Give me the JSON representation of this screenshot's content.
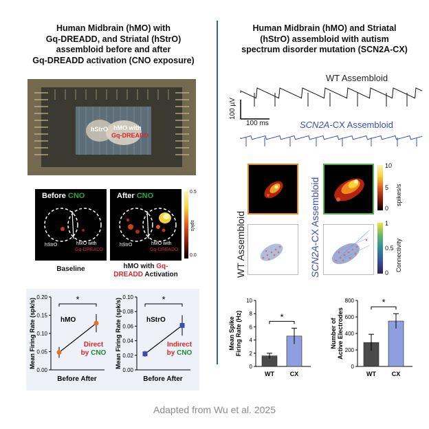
{
  "left": {
    "title_lines": [
      "Human Midbrain (hMO) with",
      "Gq-DREADD, and Striatal (hStrO)",
      "assembloid before and after",
      "Gq-DREADD activation (CNO exposure)"
    ],
    "photo": {
      "label_hstro": "hStrO",
      "label_hmo": "hMO with",
      "label_gq": "Gq-DREADD"
    },
    "heatmaps": {
      "before_label": "Before",
      "after_label": "After",
      "cno_label": "CNO",
      "cno_color": "#1fa84b",
      "hstro": "hStrO",
      "hmo_with": "hMO with",
      "gq": "Gq-DREADD",
      "colorbar_max": "0.5",
      "colorbar_min": "0.0",
      "colorbar_unit": "spk/s",
      "caption_baseline": "Baseline",
      "caption_activation_1": "hMO with",
      "caption_activation_gq": "Gq-",
      "caption_activation_2": "DREADD",
      "caption_activation_3": "Activation"
    },
    "charts": [
      {
        "ylabel": "Mean Firing Rate (spk/s)",
        "series_label": "hMO",
        "annotation_1": "Direct",
        "annotation_2": "by",
        "annotation_cno": "CNO",
        "sig": "*",
        "ticks": [
          "0.20",
          "0.15",
          "0.10",
          "0.05",
          "0.00"
        ],
        "xlabel": "Before After",
        "before": 0.048,
        "after": 0.128,
        "before_err": 0.015,
        "after_err": 0.025,
        "color": "#e8702a"
      },
      {
        "ylabel": "Mean Firing Rate (spk/s)",
        "series_label": "hStrO",
        "annotation_1": "Indirect",
        "annotation_2": "by",
        "annotation_cno": "CNO",
        "sig": "*",
        "ticks": [
          "0.10",
          "0.08",
          "0.06",
          "0.04",
          "0.02",
          "0.00"
        ],
        "xlabel": "Before After",
        "before": 0.022,
        "after": 0.061,
        "before_err": 0.004,
        "after_err": 0.014,
        "color": "#3a4db0"
      }
    ]
  },
  "right": {
    "title_lines": [
      "Human Midbrain (hMO) and Striatal",
      "(hStrO) assembloid with autism",
      "spectrum disorder mutation (SCN2A-CX)"
    ],
    "traces": {
      "wt_label": "WT Assembloid",
      "cx_label_italic": "SCN2A",
      "cx_label_rest": "-CX Assembloid",
      "scale_v": "100 µV",
      "scale_t": "100 ms"
    },
    "maps": {
      "wt_side": "WT Assembloid",
      "cx_side_italic": "SCN2A",
      "cx_side_rest": "-CX Assembloid",
      "spikes_ticks": [
        "10",
        "5",
        "0"
      ],
      "spikes_unit": "spikes/s",
      "conn_ticks": [
        "1",
        "0.5",
        "0"
      ],
      "conn_unit": "Connectivity"
    },
    "bars": [
      {
        "ylabel_1": "Mean Spike",
        "ylabel_2": "Firing Rate (Hz)",
        "ticks": [
          "10",
          "8",
          "6",
          "4",
          "2",
          "0"
        ],
        "categories": [
          "WT",
          "CX"
        ],
        "values": [
          1.6,
          4.6
        ],
        "errors": [
          0.4,
          1.2
        ],
        "sig": "*"
      },
      {
        "ylabel_1": "Number of",
        "ylabel_2": "Active Electrodes",
        "ticks": [
          "800",
          "600",
          "400",
          "200",
          "0"
        ],
        "categories": [
          "WT",
          "CX"
        ],
        "values": [
          290,
          550
        ],
        "errors": [
          100,
          90
        ],
        "sig": "*"
      }
    ]
  },
  "credit": "Adapted from Wu et al. 2025"
}
